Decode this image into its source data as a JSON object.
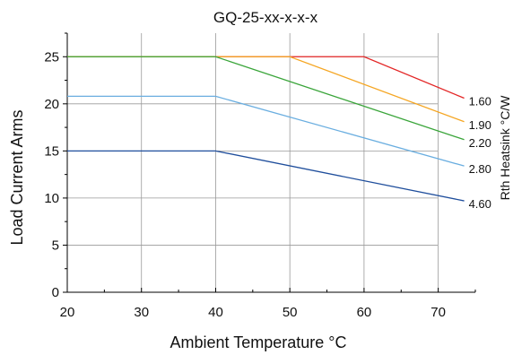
{
  "chart_data": {
    "type": "line",
    "title": "GQ-25-xx-x-x-x",
    "xlabel": "Ambient Temperature °C",
    "ylabel": "Load Current  Arms",
    "legend_title": "Rth Heatsink  °C/W",
    "xlim": [
      20,
      75
    ],
    "ylim": [
      0,
      27.5
    ],
    "xticks": [
      20,
      30,
      40,
      50,
      60,
      70
    ],
    "yticks": [
      0,
      5,
      10,
      15,
      20,
      25
    ],
    "grid": true,
    "series": [
      {
        "name": "1.60",
        "color": "#e32626",
        "x": [
          20,
          60,
          73.5
        ],
        "y": [
          25,
          25,
          20.6
        ]
      },
      {
        "name": "1.90",
        "color": "#f5a623",
        "x": [
          20,
          50,
          73.5
        ],
        "y": [
          25,
          25,
          18.1
        ]
      },
      {
        "name": "2.20",
        "color": "#3aa53a",
        "x": [
          20,
          40,
          73.5
        ],
        "y": [
          25,
          25,
          16.2
        ]
      },
      {
        "name": "2.80",
        "color": "#6aaee0",
        "x": [
          20,
          40,
          73.5
        ],
        "y": [
          20.8,
          20.8,
          13.4
        ]
      },
      {
        "name": "4.60",
        "color": "#1f4e9c",
        "x": [
          20,
          40,
          73.5
        ],
        "y": [
          15,
          15,
          9.7
        ]
      }
    ]
  }
}
